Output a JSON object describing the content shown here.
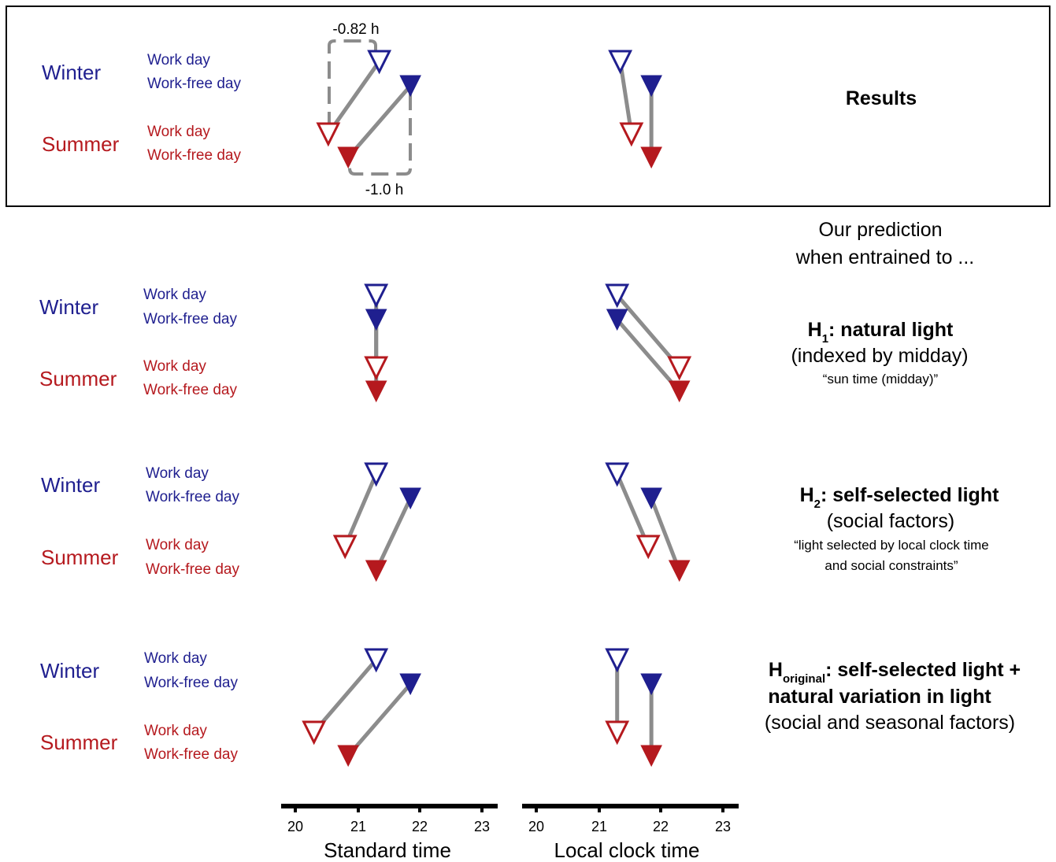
{
  "colors": {
    "winter": "#1f1f8f",
    "summer": "#b5191e",
    "connector": "#8c8c8c",
    "annotation": "#8c8c8c"
  },
  "labels": {
    "winter": "Winter",
    "summer": "Summer",
    "work_day": "Work day",
    "work_free_day": "Work-free day"
  },
  "results": {
    "title": "Results",
    "work_day_diff": "-0.82 h",
    "work_free_day_diff": "-1.0 h"
  },
  "prediction_header": {
    "line1": "Our prediction",
    "line2": "when entrained to ..."
  },
  "hypotheses": {
    "h1": {
      "main": "H",
      "sub": "1",
      "rest": ": natural light",
      "line2": "(indexed by midday)",
      "quote": "“sun time (midday)”"
    },
    "h2": {
      "main": "H",
      "sub": "2",
      "rest": ": self-selected light",
      "line2": "(social factors)",
      "quote1": "“light selected by local clock time",
      "quote2": "and social constraints”"
    },
    "horig": {
      "main": "H",
      "sub": "original",
      "rest": ": self-selected light +",
      "line2": "natural variation in light",
      "line3": "(social and seasonal factors)"
    }
  },
  "axes": {
    "standard": {
      "label": "Standard time",
      "ticks": [
        "20",
        "21",
        "22",
        "23"
      ]
    },
    "local": {
      "label": "Local clock time",
      "ticks": [
        "20",
        "21",
        "22",
        "23"
      ]
    }
  },
  "panels": [
    {
      "name": "results",
      "standard": {
        "winter_work": 21.35,
        "winter_free": 21.85,
        "summer_work": 20.53,
        "summer_free": 20.85
      },
      "local": {
        "winter_work": 21.35,
        "winter_free": 21.85,
        "summer_work": 21.53,
        "summer_free": 21.85
      }
    },
    {
      "name": "h1",
      "standard": {
        "winter_work": 21.3,
        "winter_free": 21.3,
        "summer_work": 21.3,
        "summer_free": 21.3
      },
      "local": {
        "winter_work": 21.3,
        "winter_free": 21.3,
        "summer_work": 22.3,
        "summer_free": 22.3
      }
    },
    {
      "name": "h2",
      "standard": {
        "winter_work": 21.3,
        "winter_free": 21.85,
        "summer_work": 20.8,
        "summer_free": 21.3
      },
      "local": {
        "winter_work": 21.3,
        "winter_free": 21.85,
        "summer_work": 21.8,
        "summer_free": 22.3
      }
    },
    {
      "name": "horig",
      "standard": {
        "winter_work": 21.3,
        "winter_free": 21.85,
        "summer_work": 20.3,
        "summer_free": 20.85
      },
      "local": {
        "winter_work": 21.3,
        "winter_free": 21.85,
        "summer_work": 21.3,
        "summer_free": 21.85
      }
    }
  ]
}
